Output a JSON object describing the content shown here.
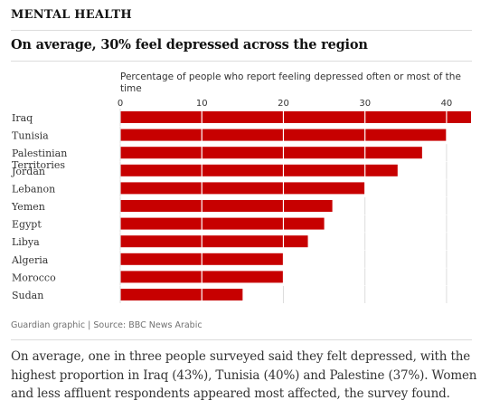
{
  "header": {
    "kicker": "MENTAL HEALTH",
    "headline": "On average, 30% feel depressed across the region"
  },
  "chart_data": {
    "type": "bar",
    "orientation": "horizontal",
    "axis_label": "Percentage of people who report feeling depressed often or most of the time",
    "axis_label_lines": [
      "Percentage of people who report feeling depressed often or most of the",
      "time"
    ],
    "x_ticks": [
      0,
      10,
      20,
      30,
      40
    ],
    "xlim": [
      0,
      43
    ],
    "grid": true,
    "color": "#c70000",
    "categories": [
      "Iraq",
      "Tunisia",
      "Palestinian Territories",
      "Jordan",
      "Lebanon",
      "Yemen",
      "Egypt",
      "Libya",
      "Algeria",
      "Morocco",
      "Sudan"
    ],
    "category_label_lines": [
      [
        "Iraq"
      ],
      [
        "Tunisia"
      ],
      [
        "Palestinian",
        "Territories"
      ],
      [
        "Jordan"
      ],
      [
        "Lebanon"
      ],
      [
        "Yemen"
      ],
      [
        "Egypt"
      ],
      [
        "Libya"
      ],
      [
        "Algeria"
      ],
      [
        "Morocco"
      ],
      [
        "Sudan"
      ]
    ],
    "values": [
      43,
      40,
      37,
      34,
      30,
      26,
      25,
      23,
      20,
      20,
      15
    ]
  },
  "footer": {
    "source": "Guardian graphic | Source: BBC News Arabic"
  },
  "caption": "On average, one in three people surveyed said they felt depressed, with the highest proportion in Iraq (43%), Tunisia (40%) and Palestine (37%). Women and less affluent respondents appeared most affected, the survey found."
}
